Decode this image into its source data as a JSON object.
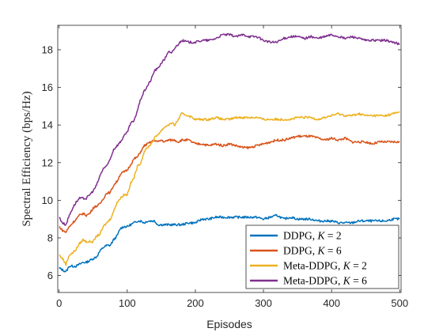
{
  "chart_data": {
    "type": "line",
    "title": "",
    "xlabel": "Episodes",
    "ylabel": "Spectral Efficiency (bps/Hz)",
    "xlim": [
      -2,
      502
    ],
    "ylim": [
      5.1,
      19.3
    ],
    "xticks": [
      0,
      100,
      200,
      300,
      400,
      500
    ],
    "yticks": [
      6,
      8,
      10,
      12,
      14,
      16,
      18
    ],
    "grid": false,
    "legend_position": "bottom-right",
    "series": [
      {
        "name": "DDPG, K = 2",
        "color": "#0072BD",
        "x": [
          0,
          5,
          10,
          15,
          20,
          25,
          30,
          35,
          40,
          45,
          50,
          55,
          60,
          65,
          70,
          75,
          80,
          85,
          90,
          95,
          100,
          105,
          110,
          115,
          120,
          125,
          130,
          135,
          140,
          145,
          150,
          155,
          160,
          165,
          170,
          175,
          180,
          190,
          200,
          210,
          220,
          230,
          240,
          250,
          260,
          270,
          280,
          290,
          300,
          310,
          320,
          330,
          340,
          350,
          360,
          370,
          380,
          390,
          400,
          410,
          420,
          430,
          440,
          450,
          460,
          470,
          480,
          490,
          500
        ],
        "y": [
          6.4,
          6.3,
          6.2,
          6.5,
          6.5,
          6.5,
          6.6,
          6.7,
          6.7,
          6.8,
          6.9,
          7.0,
          7.3,
          7.5,
          7.6,
          7.6,
          7.9,
          8.1,
          8.5,
          8.6,
          8.6,
          8.7,
          8.8,
          8.9,
          8.9,
          8.8,
          8.9,
          8.9,
          8.9,
          8.7,
          8.7,
          8.7,
          8.7,
          8.7,
          8.7,
          8.7,
          8.7,
          8.8,
          8.8,
          9.0,
          9.0,
          9.1,
          9.1,
          9.1,
          9.1,
          9.1,
          9.1,
          9.1,
          9.0,
          9.1,
          9.2,
          9.0,
          9.1,
          9.0,
          9.0,
          9.0,
          8.9,
          8.9,
          8.9,
          8.8,
          8.8,
          8.8,
          8.9,
          8.9,
          8.9,
          8.9,
          8.9,
          9.0,
          9.0
        ]
      },
      {
        "name": "DDPG, K = 6",
        "color": "#D95319",
        "x": [
          0,
          5,
          10,
          15,
          20,
          25,
          30,
          35,
          40,
          45,
          50,
          55,
          60,
          65,
          70,
          75,
          80,
          85,
          90,
          95,
          100,
          105,
          110,
          115,
          120,
          125,
          130,
          135,
          140,
          145,
          150,
          155,
          160,
          165,
          170,
          175,
          180,
          190,
          200,
          210,
          220,
          230,
          240,
          250,
          260,
          270,
          280,
          290,
          300,
          310,
          320,
          330,
          340,
          350,
          360,
          370,
          380,
          390,
          400,
          410,
          420,
          430,
          440,
          450,
          460,
          470,
          480,
          490,
          500
        ],
        "y": [
          8.6,
          8.4,
          8.3,
          8.6,
          8.8,
          9.0,
          9.2,
          9.3,
          9.2,
          9.3,
          9.6,
          9.7,
          9.8,
          10.1,
          10.4,
          10.4,
          10.8,
          11.0,
          11.4,
          11.5,
          11.6,
          11.9,
          12.2,
          12.3,
          12.6,
          12.9,
          13.0,
          13.1,
          13.2,
          13.1,
          13.2,
          13.1,
          13.2,
          13.2,
          13.2,
          13.1,
          13.2,
          13.2,
          13.0,
          13.0,
          12.9,
          13.0,
          12.9,
          13.0,
          12.9,
          12.8,
          12.8,
          12.9,
          13.0,
          13.1,
          13.2,
          13.2,
          13.3,
          13.4,
          13.4,
          13.4,
          13.3,
          13.2,
          13.3,
          13.2,
          13.3,
          13.1,
          13.1,
          13.1,
          13.0,
          13.1,
          13.1,
          13.1,
          13.1
        ]
      },
      {
        "name": "Meta-DDPG, K = 2",
        "color": "#EDB120",
        "x": [
          0,
          5,
          10,
          15,
          20,
          25,
          30,
          35,
          40,
          45,
          50,
          55,
          60,
          65,
          70,
          75,
          80,
          85,
          90,
          95,
          100,
          105,
          110,
          115,
          120,
          125,
          130,
          135,
          140,
          145,
          150,
          155,
          160,
          165,
          170,
          175,
          180,
          190,
          200,
          210,
          220,
          230,
          240,
          250,
          260,
          270,
          280,
          290,
          300,
          310,
          320,
          330,
          340,
          350,
          360,
          370,
          380,
          390,
          400,
          410,
          420,
          430,
          440,
          450,
          460,
          470,
          480,
          490,
          500
        ],
        "y": [
          7.1,
          6.9,
          6.6,
          7.1,
          7.2,
          7.4,
          7.7,
          7.9,
          7.8,
          7.8,
          7.8,
          8.1,
          8.2,
          8.6,
          8.8,
          9.0,
          9.4,
          9.9,
          10.1,
          10.3,
          10.3,
          10.9,
          11.2,
          11.8,
          12.0,
          12.6,
          12.8,
          13.0,
          13.3,
          13.5,
          13.7,
          13.9,
          14.0,
          14.1,
          14.0,
          14.3,
          14.6,
          14.5,
          14.3,
          14.3,
          14.3,
          14.4,
          14.3,
          14.3,
          14.4,
          14.4,
          14.4,
          14.4,
          14.3,
          14.3,
          14.3,
          14.3,
          14.3,
          14.4,
          14.4,
          14.4,
          14.3,
          14.4,
          14.5,
          14.6,
          14.5,
          14.5,
          14.6,
          14.5,
          14.5,
          14.5,
          14.5,
          14.6,
          14.7
        ]
      },
      {
        "name": "Meta-DDPG, K = 6",
        "color": "#7E2F8E",
        "x": [
          0,
          5,
          10,
          15,
          20,
          25,
          30,
          35,
          40,
          45,
          50,
          55,
          60,
          65,
          70,
          75,
          80,
          85,
          90,
          95,
          100,
          105,
          110,
          115,
          120,
          125,
          130,
          135,
          140,
          145,
          150,
          155,
          160,
          165,
          170,
          175,
          180,
          190,
          200,
          210,
          220,
          230,
          240,
          250,
          260,
          270,
          280,
          290,
          300,
          310,
          320,
          330,
          340,
          350,
          360,
          370,
          380,
          390,
          400,
          410,
          420,
          430,
          440,
          450,
          460,
          470,
          480,
          490,
          500
        ],
        "y": [
          9.1,
          8.8,
          8.7,
          9.2,
          9.6,
          9.9,
          10.1,
          10.1,
          10.1,
          10.3,
          10.5,
          10.8,
          11.3,
          11.7,
          11.8,
          12.2,
          12.7,
          12.9,
          13.1,
          13.4,
          13.6,
          14.1,
          14.2,
          14.8,
          15.4,
          15.8,
          16.1,
          16.4,
          16.9,
          17.0,
          17.3,
          17.5,
          17.9,
          17.8,
          18.1,
          18.3,
          18.5,
          18.4,
          18.4,
          18.5,
          18.5,
          18.6,
          18.8,
          18.8,
          18.7,
          18.8,
          18.7,
          18.7,
          18.5,
          18.4,
          18.4,
          18.6,
          18.7,
          18.7,
          18.6,
          18.7,
          18.6,
          18.7,
          18.8,
          18.7,
          18.6,
          18.7,
          18.6,
          18.5,
          18.5,
          18.5,
          18.5,
          18.4,
          18.3
        ]
      }
    ]
  },
  "legend": {
    "entries": [
      {
        "prefix": "DDPG, ",
        "var": "K",
        "rest": " = 2"
      },
      {
        "prefix": "DDPG, ",
        "var": "K",
        "rest": " = 6"
      },
      {
        "prefix": "Meta-DDPG, ",
        "var": "K",
        "rest": " = 2"
      },
      {
        "prefix": "Meta-DDPG, ",
        "var": "K",
        "rest": " = 6"
      }
    ]
  }
}
